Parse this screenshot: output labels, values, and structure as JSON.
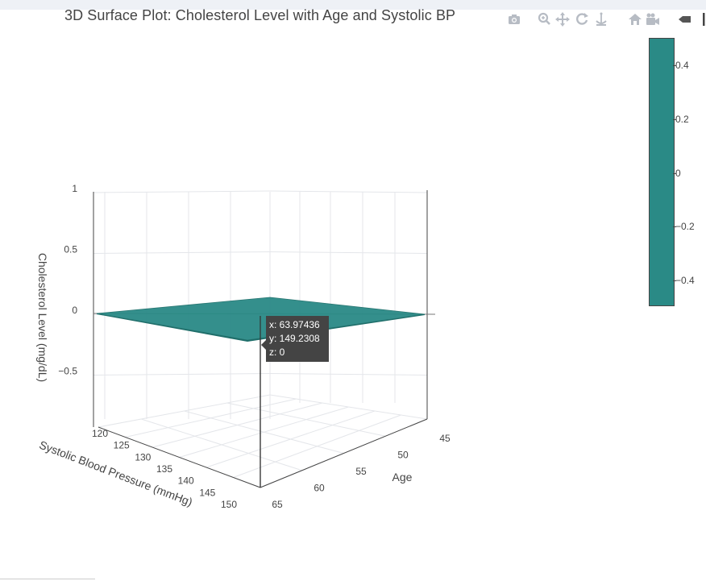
{
  "window": {
    "accent": "#2a8a86"
  },
  "title": "3D Surface Plot: Cholesterol Level with Age and Systolic BP",
  "modebar": {
    "icons": [
      "camera-icon",
      "zoom-icon",
      "pan-icon",
      "orbit-rotation-icon",
      "turntable-icon",
      "reset-camera-icon",
      "camera-view-icon",
      "hover-toggle-icon",
      "spike-lines-icon"
    ]
  },
  "colorbar": {
    "ticks": [
      "0.4",
      "0.2",
      "0",
      "−0.2",
      "−0.4"
    ],
    "values": [
      0.4,
      0.2,
      0,
      -0.2,
      -0.4
    ],
    "range": [
      -0.5,
      0.5
    ],
    "color": "#2a8a86"
  },
  "tooltip": {
    "x": "x: 63.97436",
    "y": "y: 149.2308",
    "z": "z: 0"
  },
  "chart_data": {
    "type": "surface",
    "title": "3D Surface Plot: Cholesterol Level with Age and Systolic BP",
    "xlabel": "Age",
    "ylabel": "Systolic Blood Pressure (mmHg)",
    "zlabel": "Cholesterol Level (mg/dL)",
    "x_range": [
      45,
      65
    ],
    "y_range": [
      120,
      150
    ],
    "z_range": [
      -0.75,
      1
    ],
    "x_ticks": [
      "45",
      "50",
      "55",
      "60",
      "65"
    ],
    "y_ticks": [
      "120",
      "125",
      "130",
      "135",
      "140",
      "145",
      "150"
    ],
    "z_ticks": [
      "−0.5",
      "0",
      "0.5",
      "1"
    ],
    "surface_z": 0,
    "colorscale_color": "#2a8a86",
    "grid": true,
    "hover_point": {
      "x": 63.97436,
      "y": 149.2308,
      "z": 0
    }
  }
}
